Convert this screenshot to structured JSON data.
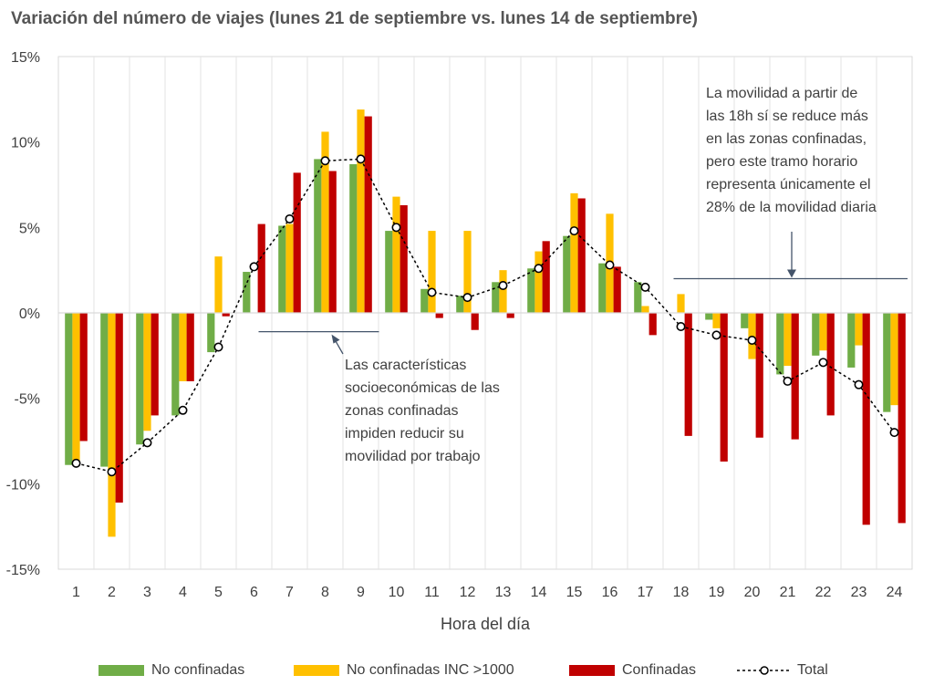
{
  "chart_data": {
    "type": "bar",
    "title": "Variación del número de viajes (lunes 21 de septiembre vs. lunes 14 de septiembre)",
    "xlabel": "Hora del día",
    "ylabel": "",
    "ylim": [
      -15,
      15
    ],
    "yticks": [
      -15,
      -10,
      -5,
      0,
      5,
      10,
      15
    ],
    "ytick_labels": [
      "-15%",
      "-10%",
      "-5%",
      "0%",
      "5%",
      "10%",
      "15%"
    ],
    "categories": [
      "1",
      "2",
      "3",
      "4",
      "5",
      "6",
      "7",
      "8",
      "9",
      "10",
      "11",
      "12",
      "13",
      "14",
      "15",
      "16",
      "17",
      "18",
      "19",
      "20",
      "21",
      "22",
      "23",
      "24"
    ],
    "grid": "vertical",
    "legend_position": "bottom",
    "series": [
      {
        "name": "No confinadas",
        "kind": "bar",
        "color": "#70AD47",
        "values": [
          -8.9,
          -9.0,
          -7.7,
          -6.0,
          -2.3,
          2.4,
          5.1,
          9.0,
          8.7,
          4.8,
          1.4,
          1.0,
          1.8,
          2.6,
          4.5,
          2.9,
          1.8,
          0.0,
          -0.4,
          -0.9,
          -3.6,
          -2.5,
          -3.2,
          -5.8
        ]
      },
      {
        "name": "No confinadas INC >1000",
        "kind": "bar",
        "color": "#FFC000",
        "values": [
          -8.7,
          -13.1,
          -6.9,
          -4.0,
          3.3,
          0.0,
          5.2,
          10.6,
          11.9,
          6.8,
          4.8,
          4.8,
          2.5,
          3.6,
          7.0,
          5.8,
          0.4,
          1.1,
          -0.9,
          -2.7,
          -3.1,
          -2.2,
          -1.9,
          -5.4
        ]
      },
      {
        "name": "Confinadas",
        "kind": "bar",
        "color": "#C00000",
        "values": [
          -7.5,
          -11.1,
          -6.0,
          -4.0,
          -0.2,
          5.2,
          8.2,
          8.3,
          11.5,
          6.3,
          -0.3,
          -1.0,
          -0.3,
          4.2,
          6.7,
          2.7,
          -1.3,
          -7.2,
          -8.7,
          -7.3,
          -7.4,
          -6.0,
          -12.4,
          -12.3
        ]
      },
      {
        "name": "Total",
        "kind": "line",
        "color": "#000000",
        "values": [
          -8.8,
          -9.3,
          -7.6,
          -5.7,
          -2.0,
          2.7,
          5.5,
          8.9,
          9.0,
          5.0,
          1.2,
          0.9,
          1.6,
          2.6,
          4.8,
          2.8,
          1.5,
          -0.8,
          -1.3,
          -1.6,
          -4.0,
          -2.9,
          -4.2,
          -7.0
        ]
      }
    ],
    "annotations": [
      {
        "id": "note-work",
        "lines": [
          "Las características",
          "socioeconómicas de las",
          "zonas confinadas",
          "impiden reducir su",
          "movilidad por trabajo"
        ],
        "bracket_from": 6,
        "bracket_to": 9,
        "bracket_y": -1.1
      },
      {
        "id": "note-evening",
        "lines": [
          "La movilidad a partir de",
          "las 18h sí se reduce más",
          "en las zonas confinadas,",
          "pero este tramo horario",
          "representa únicamente el",
          "28% de la movilidad diaria"
        ],
        "bracket_from": 18,
        "bracket_to": 24,
        "bracket_y": 2.0
      }
    ]
  }
}
